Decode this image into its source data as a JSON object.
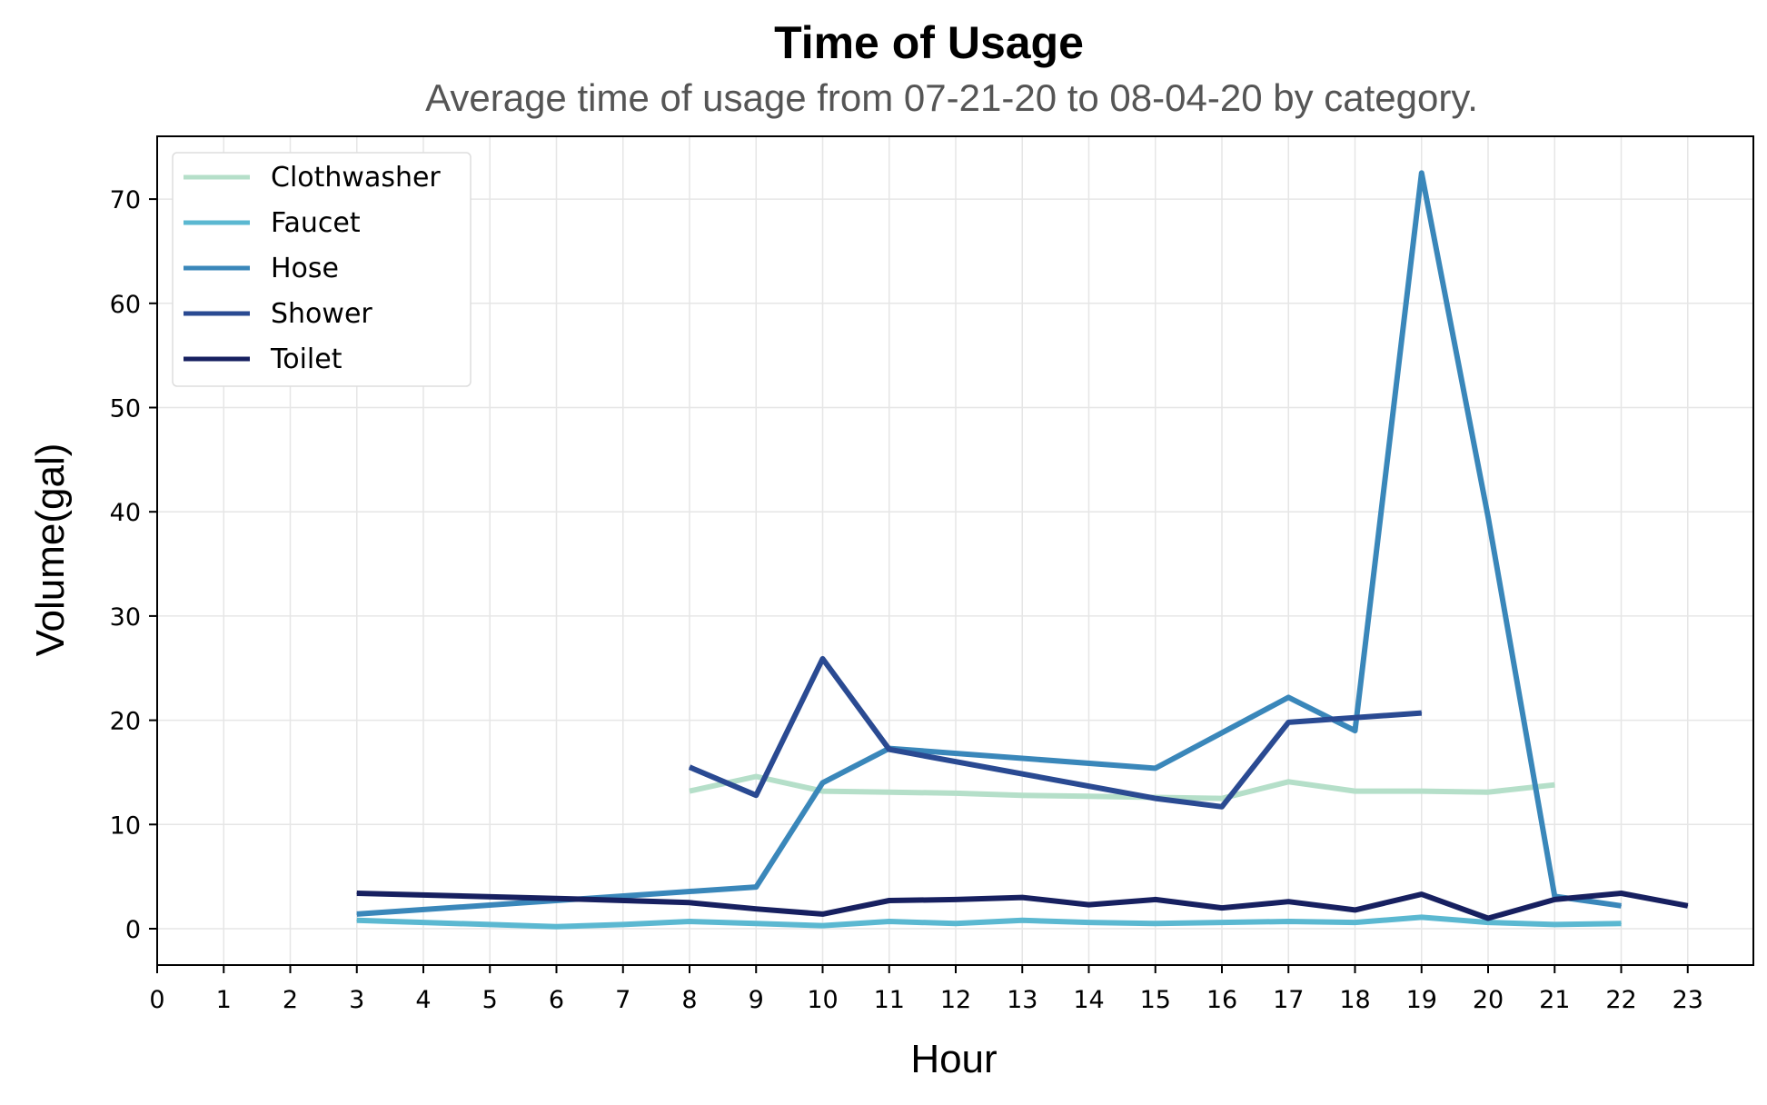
{
  "chart_data": {
    "type": "line",
    "title": "Time of Usage",
    "subtitle": "Average time of usage from 07-21-20 to 08-04-20 by category.",
    "xlabel": "Hour",
    "ylabel": "Volume(gal)",
    "xlim": [
      0,
      24
    ],
    "ylim": [
      -3.5,
      76
    ],
    "xticks": [
      0,
      1,
      2,
      3,
      4,
      5,
      6,
      7,
      8,
      9,
      10,
      11,
      12,
      13,
      14,
      15,
      16,
      17,
      18,
      19,
      20,
      21,
      22,
      23
    ],
    "yticks": [
      0,
      10,
      20,
      30,
      40,
      50,
      60,
      70
    ],
    "grid": true,
    "legend_position": "top-left",
    "series": [
      {
        "name": "Clothwasher",
        "color": "#b5dfc9",
        "points": [
          [
            8,
            13.2
          ],
          [
            9,
            14.6
          ],
          [
            10,
            13.2
          ],
          [
            11,
            13.1
          ],
          [
            12,
            13.0
          ],
          [
            13,
            12.8
          ],
          [
            14,
            12.7
          ],
          [
            15,
            12.6
          ],
          [
            16,
            12.5
          ],
          [
            17,
            14.1
          ],
          [
            18,
            13.2
          ],
          [
            19,
            13.2
          ],
          [
            20,
            13.1
          ],
          [
            21,
            13.8
          ]
        ]
      },
      {
        "name": "Faucet",
        "color": "#5bb8d1",
        "points": [
          [
            3,
            0.8
          ],
          [
            4,
            0.6
          ],
          [
            5,
            0.4
          ],
          [
            6,
            0.2
          ],
          [
            7,
            0.4
          ],
          [
            8,
            0.7
          ],
          [
            9,
            0.5
          ],
          [
            10,
            0.3
          ],
          [
            11,
            0.7
          ],
          [
            12,
            0.5
          ],
          [
            13,
            0.8
          ],
          [
            14,
            0.6
          ],
          [
            15,
            0.5
          ],
          [
            16,
            0.6
          ],
          [
            17,
            0.7
          ],
          [
            18,
            0.6
          ],
          [
            19,
            1.1
          ],
          [
            20,
            0.6
          ],
          [
            21,
            0.4
          ],
          [
            22,
            0.5
          ]
        ]
      },
      {
        "name": "Hose",
        "color": "#3a87ba",
        "points": [
          [
            3,
            1.4
          ],
          [
            9,
            4.0
          ],
          [
            10,
            14.0
          ],
          [
            11,
            17.3
          ],
          [
            15,
            15.4
          ],
          [
            17,
            22.2
          ],
          [
            18,
            19.0
          ],
          [
            19,
            72.5
          ],
          [
            20,
            39.5
          ],
          [
            21,
            3.1
          ],
          [
            22,
            2.2
          ]
        ]
      },
      {
        "name": "Shower",
        "color": "#2a4a92",
        "points": [
          [
            8,
            15.5
          ],
          [
            9,
            12.8
          ],
          [
            10,
            25.9
          ],
          [
            11,
            17.2
          ],
          [
            15,
            12.5
          ],
          [
            16,
            11.7
          ],
          [
            17,
            19.8
          ],
          [
            19,
            20.7
          ]
        ]
      },
      {
        "name": "Toilet",
        "color": "#172060",
        "points": [
          [
            3,
            3.4
          ],
          [
            6,
            2.9
          ],
          [
            8,
            2.5
          ],
          [
            9,
            1.9
          ],
          [
            10,
            1.4
          ],
          [
            11,
            2.7
          ],
          [
            12,
            2.8
          ],
          [
            13,
            3.0
          ],
          [
            14,
            2.3
          ],
          [
            15,
            2.8
          ],
          [
            16,
            2.0
          ],
          [
            17,
            2.6
          ],
          [
            18,
            1.8
          ],
          [
            19,
            3.3
          ],
          [
            20,
            1.0
          ],
          [
            21,
            2.8
          ],
          [
            22,
            3.4
          ],
          [
            23,
            2.2
          ]
        ]
      }
    ]
  }
}
